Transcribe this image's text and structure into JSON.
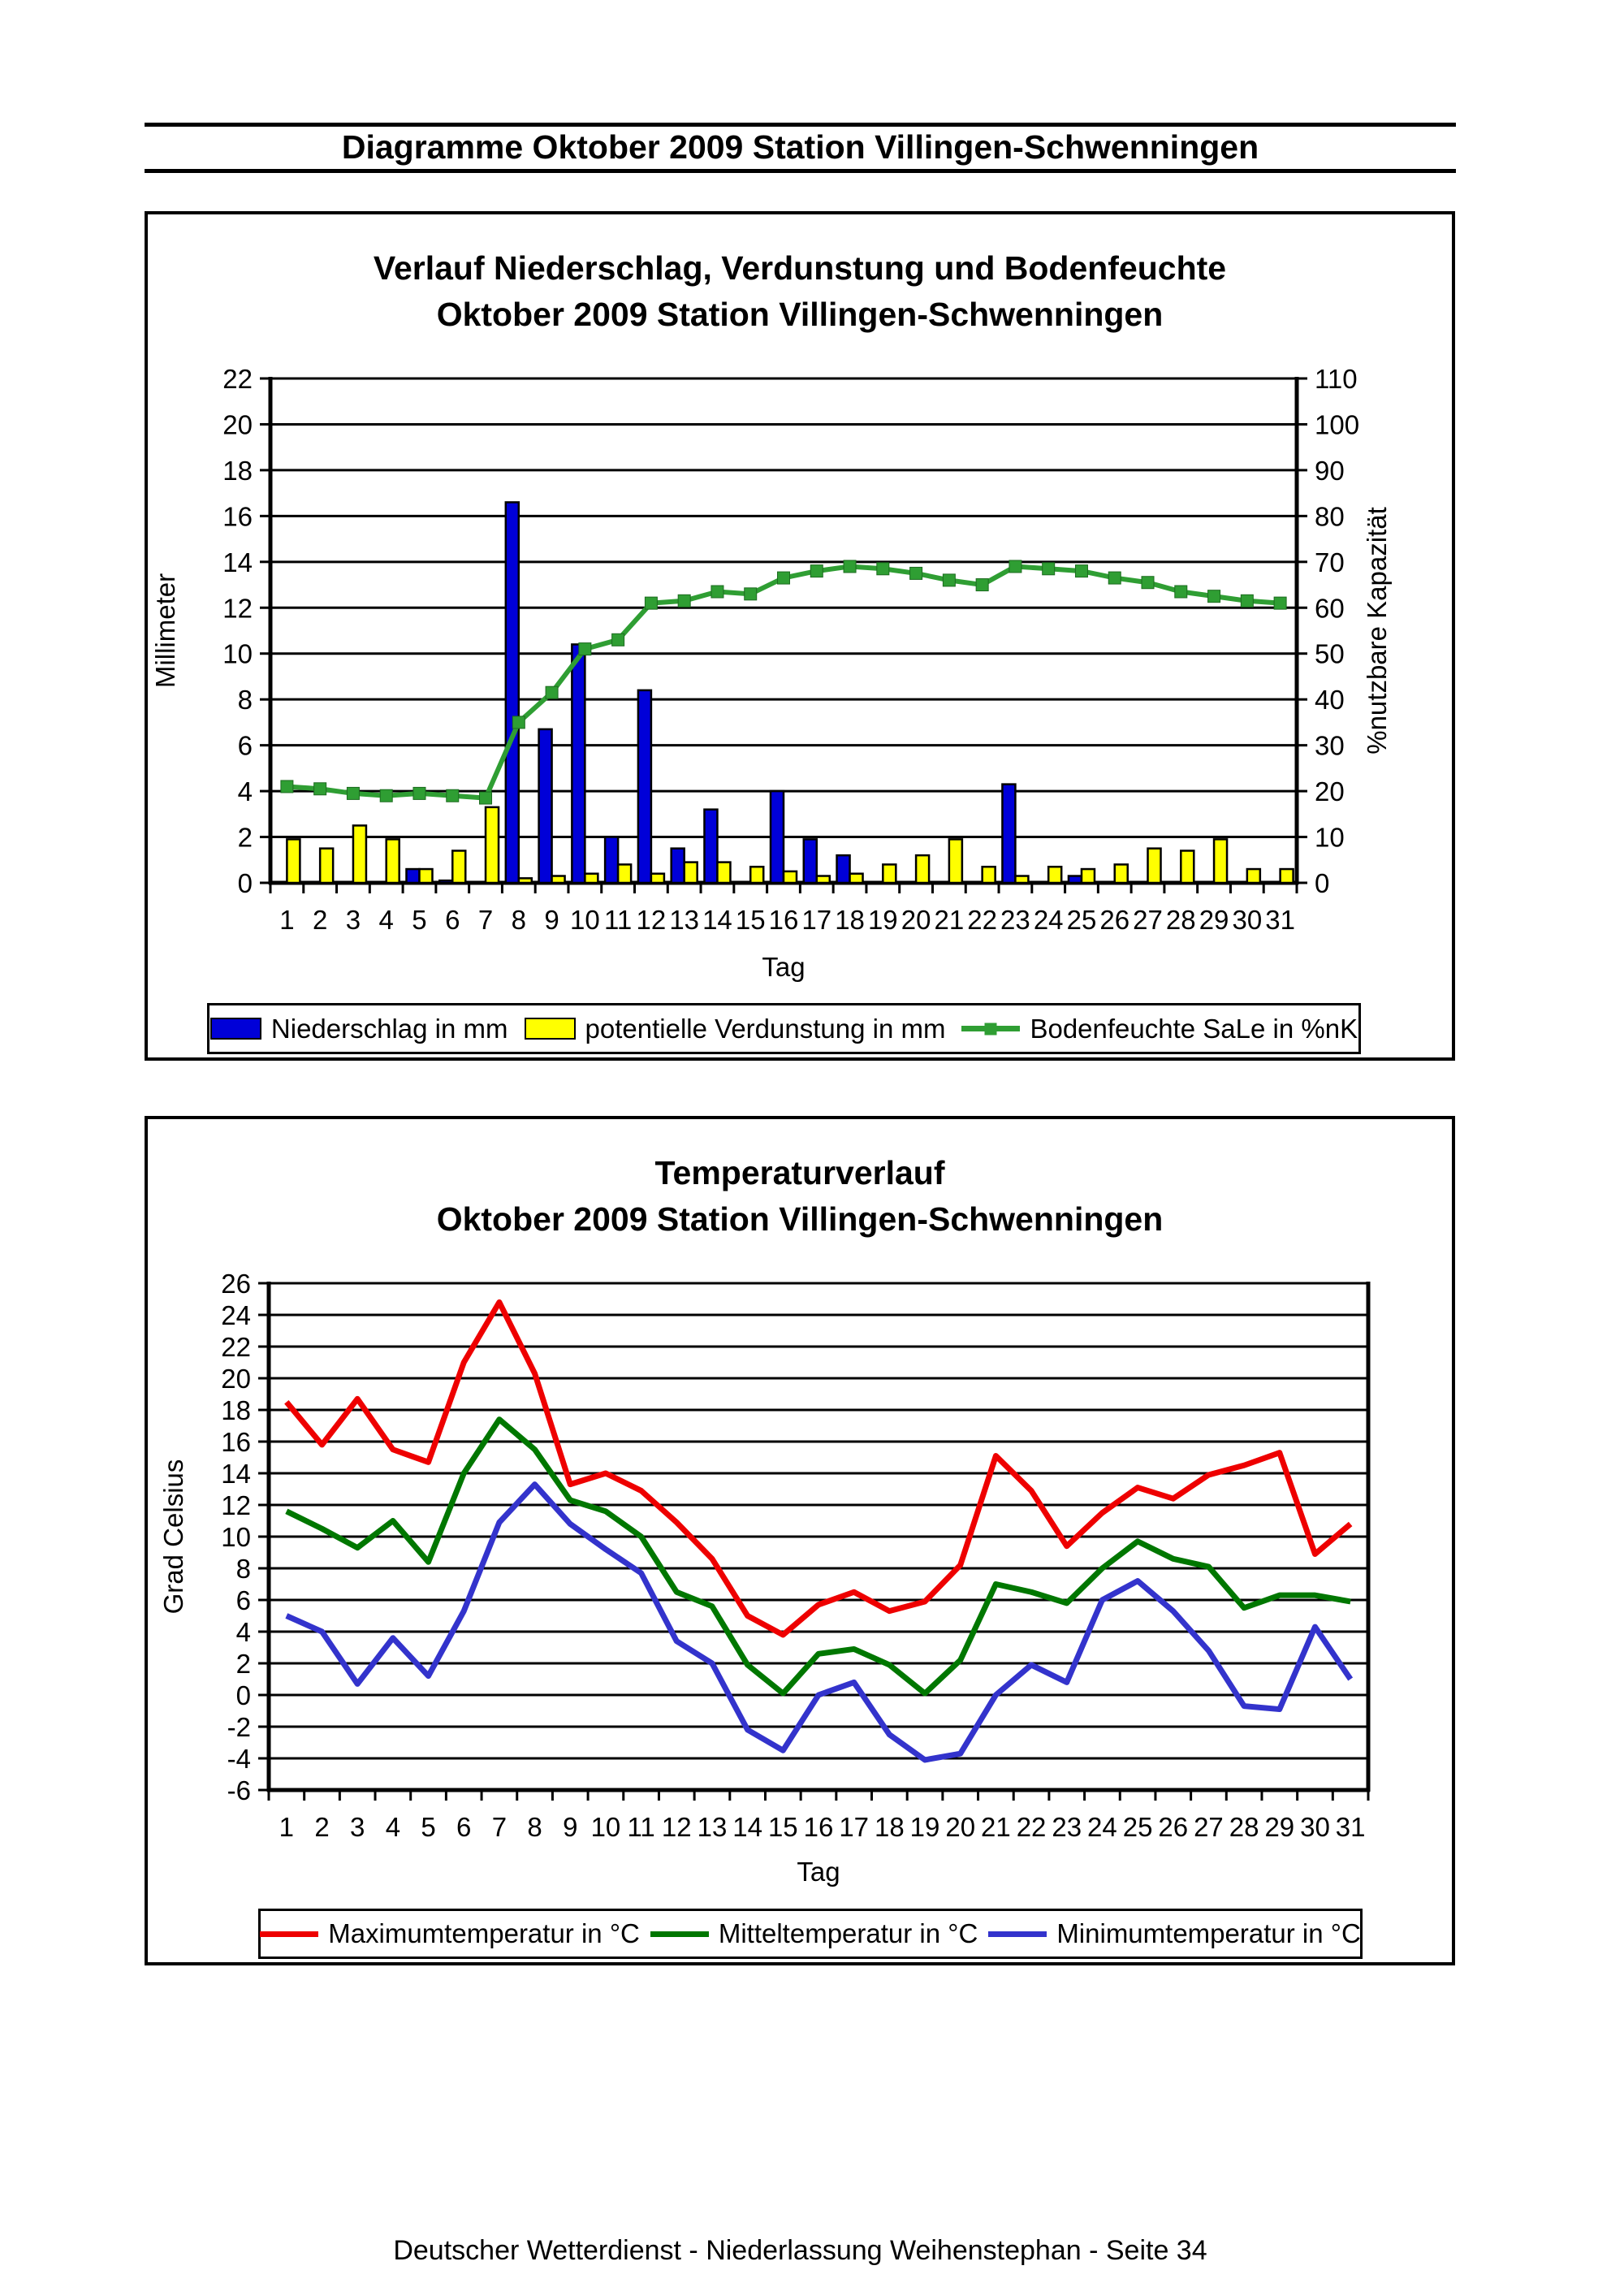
{
  "header": {
    "title": "Diagramme Oktober 2009 Station Villingen-Schwenningen"
  },
  "footer": {
    "text": "Deutscher Wetterdienst - Niederlassung Weihenstephan - Seite 34"
  },
  "colors": {
    "precip_bar": "#0000d8",
    "evap_bar": "#ffff00",
    "soil_line": "#2f9e33",
    "tmax_line": "#ee0000",
    "tmean_line": "#007700",
    "tmin_line": "#3333cc",
    "axis": "#000000"
  },
  "chart_data": [
    {
      "type": "bar",
      "title_line1": "Verlauf Niederschlag, Verdunstung und Bodenfeuchte",
      "title_line2": "Oktober 2009 Station Villingen-Schwenningen",
      "xlabel": "Tag",
      "ylabel_left": "Millimeter",
      "ylabel_right": "%nutzbare Kapazität",
      "categories": [
        1,
        2,
        3,
        4,
        5,
        6,
        7,
        8,
        9,
        10,
        11,
        12,
        13,
        14,
        15,
        16,
        17,
        18,
        19,
        20,
        21,
        22,
        23,
        24,
        25,
        26,
        27,
        28,
        29,
        30,
        31
      ],
      "ylim_left": [
        0,
        22
      ],
      "ytick_step_left": 2,
      "ylim_right": [
        0,
        110
      ],
      "ytick_step_right": 10,
      "grid": "horizontal",
      "legend_position": "bottom",
      "series": [
        {
          "name": "Niederschlag in mm",
          "kind": "bar",
          "axis": "left",
          "color_key": "precip_bar",
          "values": [
            0,
            0,
            0,
            0,
            0.6,
            0.1,
            0,
            16.6,
            6.7,
            10.4,
            2.0,
            8.4,
            1.5,
            3.2,
            0,
            4.0,
            1.9,
            1.2,
            0,
            0,
            0,
            0,
            4.3,
            0,
            0.3,
            0,
            0,
            0,
            0,
            0,
            0
          ]
        },
        {
          "name": "potentielle Verdunstung in mm",
          "kind": "bar",
          "axis": "left",
          "color_key": "evap_bar",
          "values": [
            1.9,
            1.5,
            2.5,
            1.9,
            0.6,
            1.4,
            3.3,
            0.2,
            0.3,
            0.4,
            0.8,
            0.4,
            0.9,
            0.9,
            0.7,
            0.5,
            0.3,
            0.4,
            0.8,
            1.2,
            1.9,
            0.7,
            0.3,
            0.7,
            0.6,
            0.8,
            1.5,
            1.4,
            1.9,
            0.6,
            0.6
          ]
        },
        {
          "name": "Bodenfeuchte SaLe in %nK",
          "kind": "line",
          "axis": "right",
          "color_key": "soil_line",
          "marker": "square",
          "values": [
            21,
            20.5,
            19.5,
            19,
            19.5,
            19,
            18.5,
            35,
            41.5,
            51,
            53,
            61,
            61.5,
            63.5,
            63,
            66.5,
            68,
            69,
            68.5,
            67.5,
            66,
            65,
            69,
            68.5,
            68,
            66.5,
            65.5,
            63.5,
            62.5,
            61.5,
            61
          ]
        }
      ]
    },
    {
      "type": "line",
      "title_line1": "Temperaturverlauf",
      "title_line2": "Oktober 2009 Station Villingen-Schwenningen",
      "xlabel": "Tag",
      "ylabel_left": "Grad Celsius",
      "categories": [
        1,
        2,
        3,
        4,
        5,
        6,
        7,
        8,
        9,
        10,
        11,
        12,
        13,
        14,
        15,
        16,
        17,
        18,
        19,
        20,
        21,
        22,
        23,
        24,
        25,
        26,
        27,
        28,
        29,
        30,
        31
      ],
      "ylim_left": [
        -6,
        26
      ],
      "ytick_step_left": 2,
      "grid": "horizontal",
      "legend_position": "bottom",
      "series": [
        {
          "name": "Maximumtemperatur in °C",
          "kind": "line",
          "axis": "left",
          "color_key": "tmax_line",
          "values": [
            18.5,
            15.8,
            18.7,
            15.5,
            14.7,
            21.0,
            24.8,
            20.3,
            13.3,
            14.0,
            12.9,
            10.9,
            8.6,
            5.0,
            3.8,
            5.7,
            6.5,
            5.3,
            5.9,
            8.2,
            15.1,
            12.9,
            9.4,
            11.5,
            13.1,
            12.4,
            13.9,
            14.5,
            15.3,
            8.9,
            10.8
          ]
        },
        {
          "name": "Mitteltemperatur in °C",
          "kind": "line",
          "axis": "left",
          "color_key": "tmean_line",
          "values": [
            11.6,
            10.5,
            9.3,
            11.0,
            8.4,
            14.0,
            17.4,
            15.5,
            12.3,
            11.6,
            10.0,
            6.5,
            5.6,
            1.9,
            0.1,
            2.6,
            2.9,
            1.9,
            0.1,
            2.2,
            7.0,
            6.5,
            5.8,
            8.0,
            9.7,
            8.6,
            8.1,
            5.5,
            6.3,
            6.3,
            5.9
          ]
        },
        {
          "name": "Minimumtemperatur in °C",
          "kind": "line",
          "axis": "left",
          "color_key": "tmin_line",
          "values": [
            5.0,
            4.0,
            0.7,
            3.6,
            1.2,
            5.3,
            10.9,
            13.3,
            10.8,
            9.2,
            7.7,
            3.4,
            2.0,
            -2.2,
            -3.5,
            0.0,
            0.8,
            -2.5,
            -4.1,
            -3.7,
            0.0,
            1.9,
            0.8,
            6.0,
            7.2,
            5.3,
            2.8,
            -0.7,
            -0.9,
            4.3,
            1.0
          ]
        }
      ]
    }
  ]
}
